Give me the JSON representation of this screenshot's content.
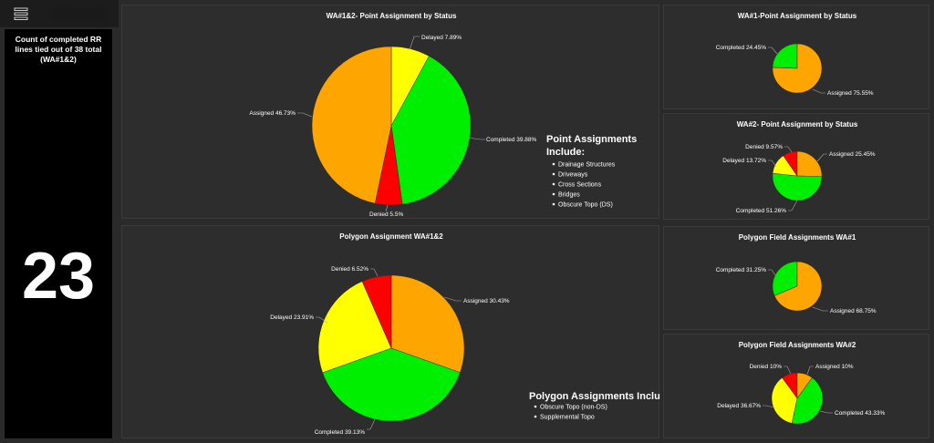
{
  "header": {
    "menu_icon": "hamburger-menu-icon"
  },
  "left_panel": {
    "title": "Count of completed RR lines tied out of 38 total (WA#1&2)",
    "value": "23"
  },
  "colors": {
    "completed": "#00ee00",
    "assigned": "#ffa500",
    "delayed": "#ffff00",
    "denied": "#ff0000"
  },
  "charts": {
    "p1": {
      "title": "WA#1&2- Point Assignment by Status",
      "labels": [
        "Delayed 7.89%",
        "Completed 39.88%",
        "Denied 5.5%",
        "Assigned 46.73%"
      ],
      "legend_title": [
        "Point Assignments",
        "Include:"
      ],
      "legend_items": [
        "Drainage Structures",
        "Driveways",
        "Cross Sections",
        "Bridges",
        "Obscure Topo (DS)"
      ]
    },
    "p2": {
      "title": "WA#1-Point Assignment by Status",
      "labels": [
        "Completed 24.45%",
        "Assigned 75.55%"
      ]
    },
    "p3": {
      "title": "WA#2- Point Assignment by Status",
      "labels": [
        "Denied 9.57%",
        "Assigned 25.45%",
        "Delayed 13.72%",
        "Completed 51.26%"
      ]
    },
    "p4": {
      "title": "Polygon Assignment WA#1&2",
      "labels": [
        "Denied 6.52%",
        "Assigned 30.43%",
        "Delayed 23.91%",
        "Completed 39.13%"
      ],
      "legend_title": [
        "Polygon Assignments Include:"
      ],
      "legend_items": [
        "Obscure Topo (non-DS)",
        "Supplemental Topo"
      ]
    },
    "p5": {
      "title": "Polygon Field Assignments WA#1",
      "labels": [
        "Completed 31.25%",
        "Assigned 68.75%"
      ]
    },
    "p6": {
      "title": "Polygon Field Assignments WA#2",
      "labels": [
        "Denied 10%",
        "Assigned 10%",
        "Delayed 36.67%",
        "Completed 43.33%"
      ]
    }
  },
  "chart_data": [
    {
      "type": "pie",
      "title": "WA#1&2- Point Assignment by Status",
      "categories": [
        "Delayed",
        "Completed",
        "Denied",
        "Assigned"
      ],
      "values": [
        7.89,
        39.88,
        5.5,
        46.73
      ]
    },
    {
      "type": "pie",
      "title": "WA#1-Point Assignment by Status",
      "categories": [
        "Completed",
        "Assigned"
      ],
      "values": [
        24.45,
        75.55
      ]
    },
    {
      "type": "pie",
      "title": "WA#2- Point Assignment by Status",
      "categories": [
        "Denied",
        "Assigned",
        "Completed",
        "Delayed"
      ],
      "values": [
        9.57,
        25.45,
        51.26,
        13.72
      ]
    },
    {
      "type": "pie",
      "title": "Polygon Assignment WA#1&2",
      "categories": [
        "Assigned",
        "Completed",
        "Delayed",
        "Denied"
      ],
      "values": [
        30.43,
        39.13,
        23.91,
        6.52
      ]
    },
    {
      "type": "pie",
      "title": "Polygon Field Assignments WA#1",
      "categories": [
        "Completed",
        "Assigned"
      ],
      "values": [
        31.25,
        68.75
      ]
    },
    {
      "type": "pie",
      "title": "Polygon Field Assignments WA#2",
      "categories": [
        "Denied",
        "Assigned",
        "Completed",
        "Delayed"
      ],
      "values": [
        10,
        10,
        43.33,
        36.67
      ]
    }
  ]
}
